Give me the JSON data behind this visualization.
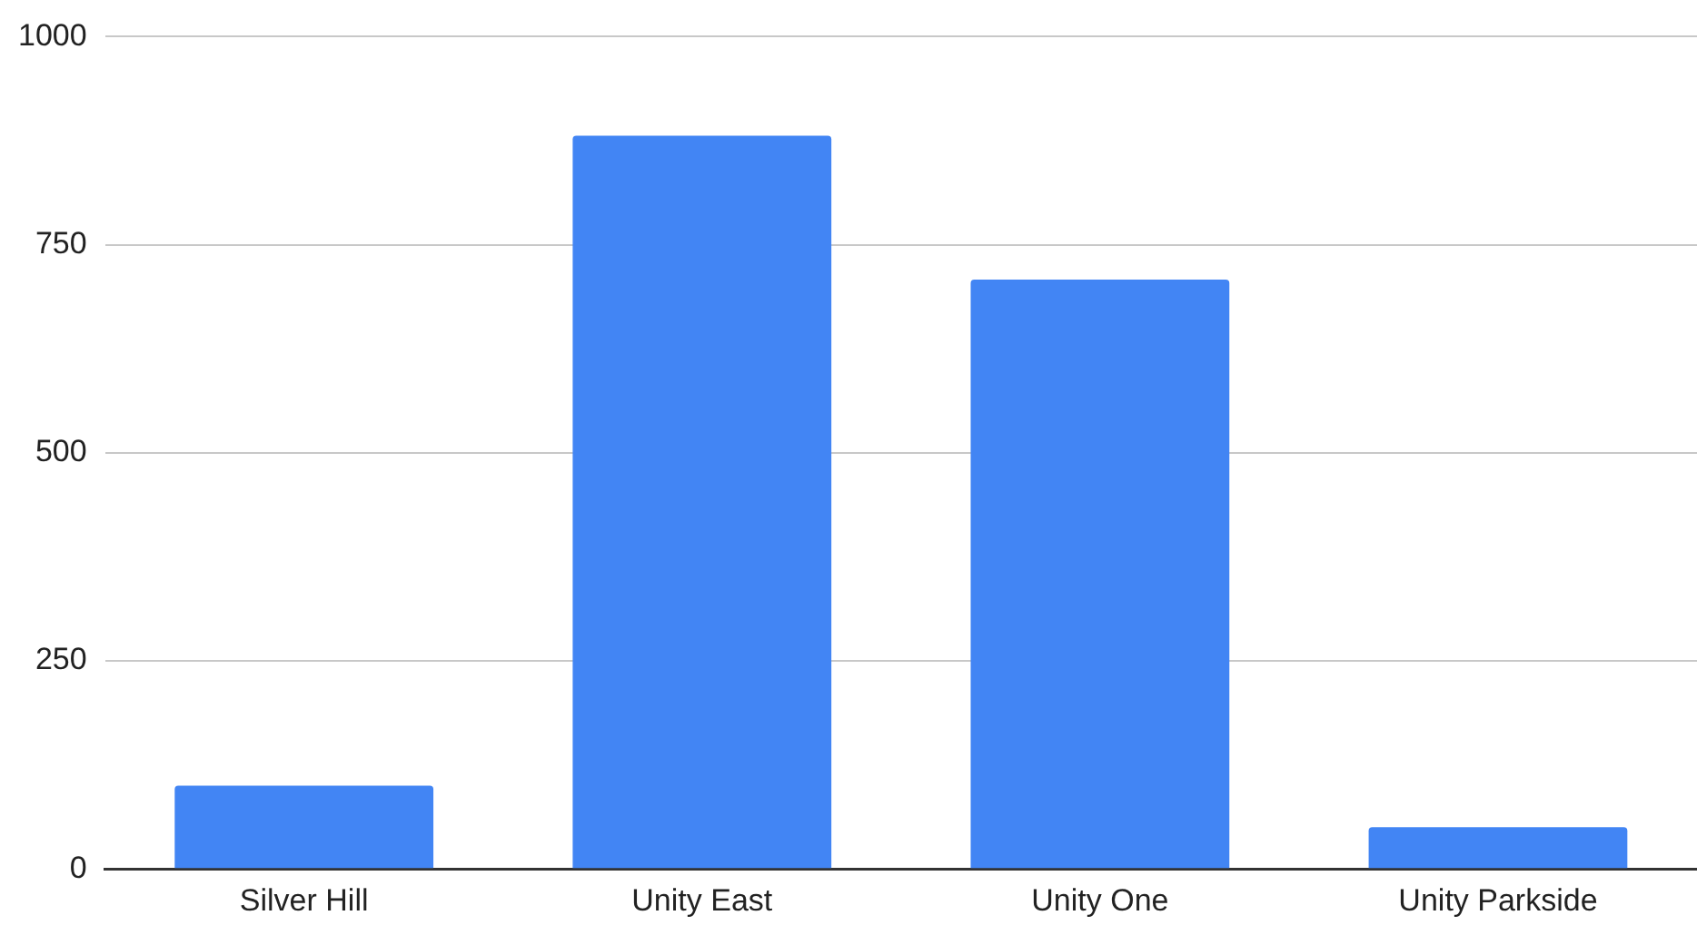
{
  "chart_data": {
    "type": "bar",
    "categories": [
      "Silver Hill",
      "Unity East",
      "Unity One",
      "Unity Parkside"
    ],
    "values": [
      100,
      881,
      708,
      50
    ],
    "color": "#4285f4",
    "ylim": [
      0,
      1000
    ],
    "yticks": [
      0,
      250,
      500,
      750,
      1000
    ],
    "grid": "y",
    "legend": false
  }
}
